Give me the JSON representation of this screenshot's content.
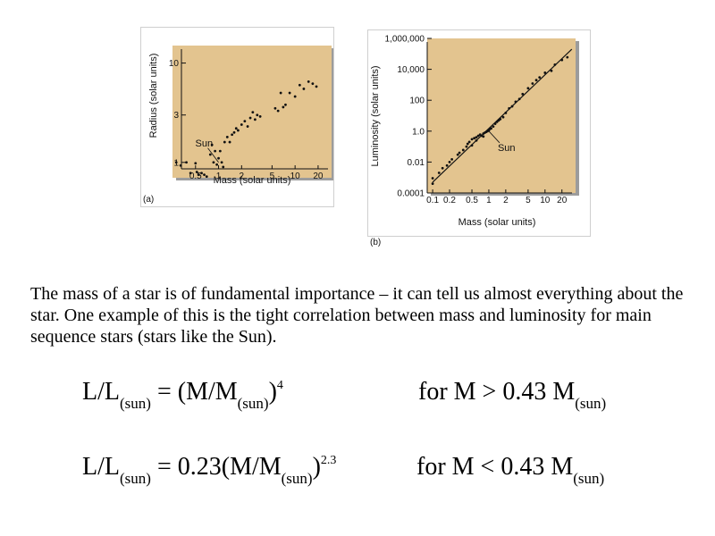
{
  "chart_data": [
    {
      "type": "scatter",
      "panel_label": "(a)",
      "xlabel": "Mass (solar units)",
      "ylabel": "Radius (solar units)",
      "xscale": "log",
      "yscale": "log",
      "xlim": [
        0.25,
        30
      ],
      "ylim": [
        0.7,
        15
      ],
      "xticks": [
        0.5,
        1,
        2,
        5,
        10,
        20
      ],
      "xtick_labels": [
        "0.5",
        "1",
        "2",
        "5",
        "10",
        "20"
      ],
      "yticks": [
        1,
        3,
        10
      ],
      "ytick_labels": [
        "1",
        "3",
        "10"
      ],
      "annotations": [
        {
          "text": "Sun",
          "x": 1,
          "y": 1
        }
      ],
      "x": [
        0.28,
        0.32,
        0.38,
        0.43,
        0.5,
        0.52,
        0.55,
        0.6,
        0.65,
        0.7,
        0.78,
        0.82,
        0.86,
        0.9,
        0.95,
        1.0,
        1.05,
        1.1,
        1.15,
        1.2,
        1.3,
        1.4,
        1.5,
        1.6,
        1.7,
        1.8,
        2.0,
        2.2,
        2.4,
        2.6,
        2.8,
        3.0,
        3.2,
        3.5,
        5.5,
        6.0,
        6.5,
        7.0,
        7.5,
        8.5,
        10.0,
        11.5,
        13.0,
        15.0,
        17.0,
        19.0
      ],
      "y": [
        1.0,
        0.93,
        1.0,
        0.78,
        0.98,
        0.8,
        0.75,
        0.78,
        0.75,
        0.72,
        1.2,
        1.5,
        1.0,
        1.3,
        0.95,
        1.1,
        1.3,
        1.0,
        0.9,
        1.6,
        1.8,
        1.6,
        1.9,
        2.0,
        2.2,
        2.1,
        2.4,
        2.6,
        2.3,
        2.8,
        3.2,
        2.7,
        3.0,
        2.9,
        3.5,
        3.3,
        5.0,
        3.6,
        3.8,
        5.0,
        4.6,
        6.0,
        5.5,
        6.5,
        6.2,
        5.8
      ],
      "background": "#e3c48f"
    },
    {
      "type": "scatter",
      "panel_label": "(b)",
      "xlabel": "Mass (solar units)",
      "ylabel": "Luminosity (solar units)",
      "xscale": "log",
      "yscale": "log",
      "xlim": [
        0.08,
        35
      ],
      "ylim": [
        0.0001,
        1000000
      ],
      "xticks": [
        0.1,
        0.2,
        0.5,
        1,
        2,
        5,
        10,
        20
      ],
      "xtick_labels": [
        "0.1",
        "0.2",
        "0.5",
        "1",
        "2",
        "5",
        "10",
        "20"
      ],
      "yticks": [
        0.0001,
        0.01,
        1,
        100,
        10000,
        1000000
      ],
      "ytick_labels": [
        "0.0001",
        "0.01",
        "1.0",
        "100",
        "10,000",
        "1,000,000"
      ],
      "annotations": [
        {
          "text": "Sun",
          "x": 1,
          "y": 1
        }
      ],
      "fit_line": {
        "x": [
          0.1,
          30
        ],
        "y": [
          0.0005,
          200000
        ]
      },
      "x": [
        0.1,
        0.1,
        0.13,
        0.15,
        0.18,
        0.2,
        0.22,
        0.28,
        0.3,
        0.35,
        0.4,
        0.42,
        0.45,
        0.5,
        0.5,
        0.55,
        0.6,
        0.6,
        0.65,
        0.7,
        0.75,
        0.8,
        0.8,
        0.85,
        0.9,
        0.95,
        1.0,
        1.05,
        1.1,
        1.2,
        1.3,
        1.4,
        1.5,
        1.6,
        1.8,
        2.0,
        2.3,
        2.6,
        3.0,
        3.5,
        4.0,
        5.0,
        6.0,
        7.0,
        8.0,
        10.0,
        13.0,
        15.0,
        20.0,
        25.0
      ],
      "y": [
        0.0004,
        0.0009,
        0.002,
        0.004,
        0.006,
        0.01,
        0.015,
        0.03,
        0.04,
        0.06,
        0.1,
        0.15,
        0.2,
        0.3,
        0.12,
        0.35,
        0.4,
        0.25,
        0.5,
        0.6,
        0.5,
        0.7,
        0.45,
        0.8,
        0.9,
        1.0,
        1.1,
        1.4,
        1.5,
        2.0,
        3.0,
        4.0,
        5.0,
        6.0,
        8.0,
        15,
        30,
        40,
        80,
        120,
        250,
        600,
        1200,
        2000,
        3000,
        6000,
        8000,
        20000,
        40000,
        60000
      ],
      "background": "#e3c48f"
    }
  ],
  "paragraph": "The mass of a star is of fundamental importance – it can tell us almost everything about the star.  One example of this is the tight correlation between mass and luminosity for main sequence stars (stars like the Sun).",
  "equations": [
    {
      "lhs": "L/L",
      "lhs_sub": "(sun)",
      "rhs_pre": " = (M/M",
      "rhs_sub": "(sun)",
      "rhs_close": ")",
      "exponent": "4",
      "cond": "for M > 0.43 M",
      "cond_sub": "(sun)"
    },
    {
      "lhs": "L/L",
      "lhs_sub": "(sun)",
      "rhs_pre": " = 0.23(M/M",
      "rhs_sub": "(sun)",
      "rhs_close": ")",
      "exponent": "2.3",
      "cond": "for M < 0.43 M",
      "cond_sub": "(sun)"
    }
  ]
}
